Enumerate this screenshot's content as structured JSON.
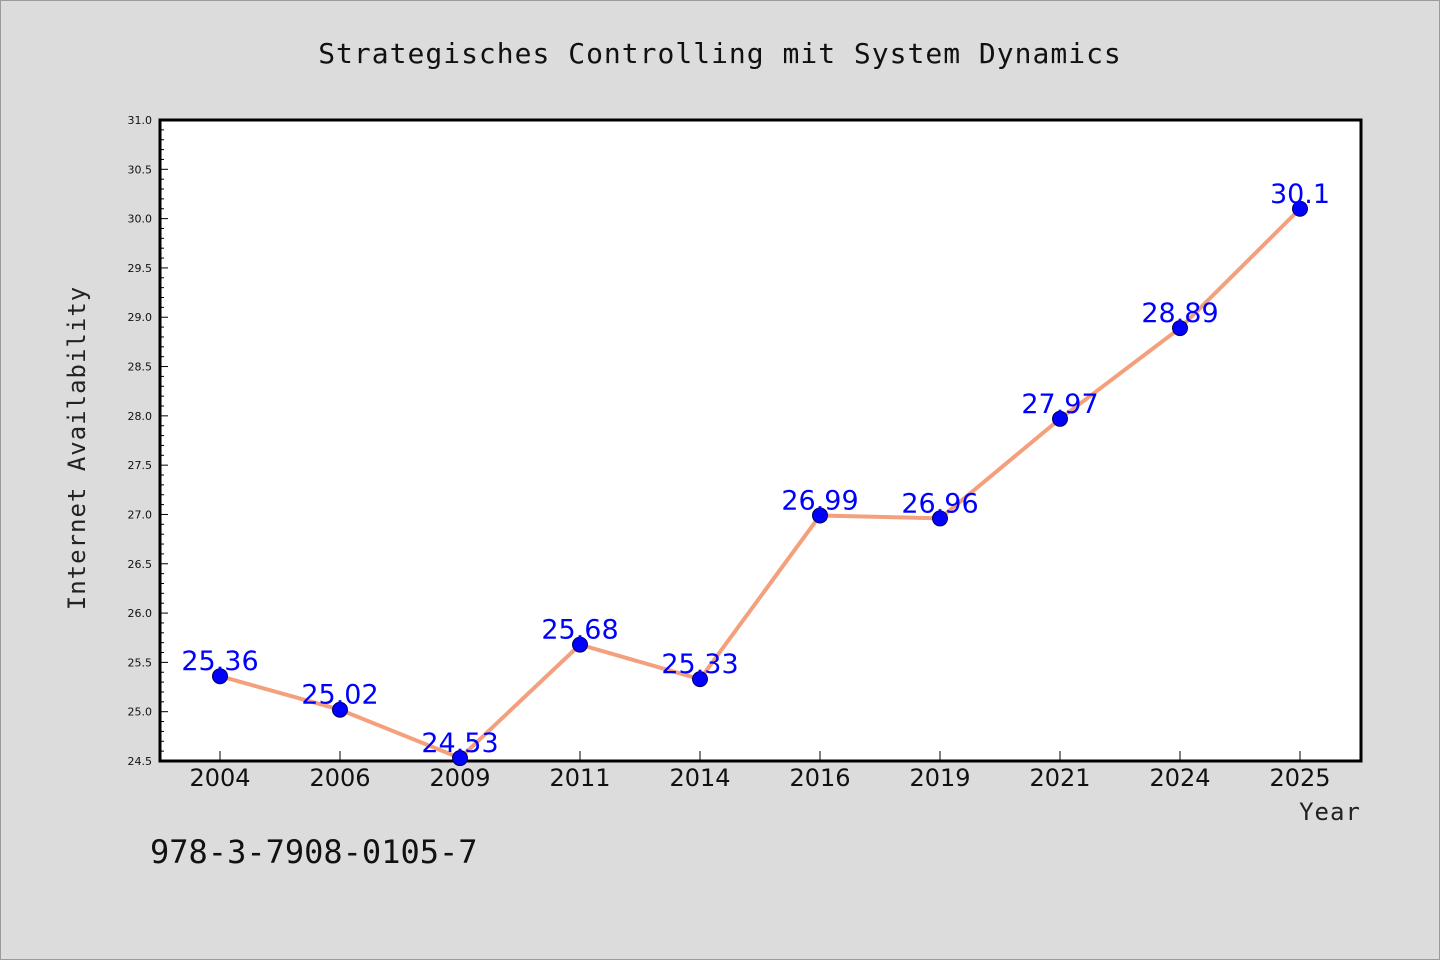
{
  "chart_data": {
    "type": "line",
    "title": "Strategisches Controlling mit System Dynamics",
    "xlabel": "Year",
    "ylabel": "Internet Availability",
    "categories": [
      "2004",
      "2006",
      "2009",
      "2011",
      "2014",
      "2016",
      "2019",
      "2021",
      "2024",
      "2025"
    ],
    "series": [
      {
        "values": [
          25.36,
          25.02,
          24.53,
          25.68,
          25.33,
          26.99,
          26.96,
          27.97,
          28.89,
          30.1
        ],
        "labels": [
          "25.36",
          "25.02",
          "24.53",
          "25.68",
          "25.33",
          "26.99",
          "26.96",
          "27.97",
          "28.89",
          "30.1"
        ],
        "line_color": "#f4a07c",
        "marker_color": "#0000ff"
      }
    ],
    "ylim": [
      24.5,
      31.0
    ],
    "yticks": [
      "24.5",
      "25.0",
      "25.5",
      "26.0",
      "26.5",
      "27.0",
      "27.5",
      "28.0",
      "28.5",
      "29.0",
      "29.5",
      "30.0",
      "30.5",
      "31.0"
    ],
    "grid": false,
    "legend": "none"
  },
  "footer": {
    "isbn": "978-3-7908-0105-7"
  },
  "colors": {
    "background": "#dcdcdc",
    "plot_background": "#ffffff",
    "line": "#f4a07c",
    "marker": "#0000ff",
    "data_label": "#0000ff"
  }
}
